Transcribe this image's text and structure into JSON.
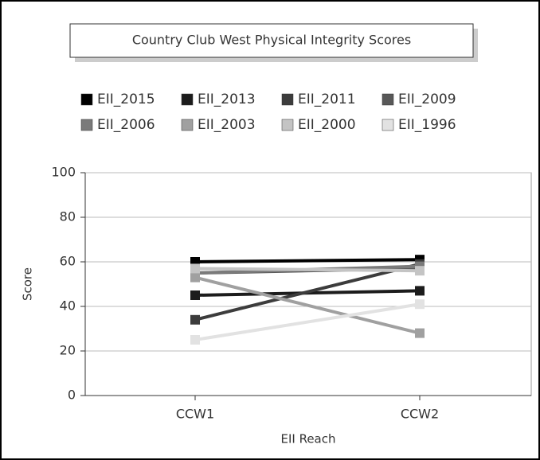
{
  "chart_data": {
    "type": "line",
    "title": "Country Club West Physical Integrity Scores",
    "x_label": "EII Reach",
    "y_label": "Score",
    "categories": [
      "CCW1",
      "CCW2"
    ],
    "ylim": [
      0,
      100
    ],
    "yticks": [
      0,
      20,
      40,
      60,
      80,
      100
    ],
    "grid": true,
    "series": [
      {
        "name": "EII_2015",
        "color": "#000000",
        "values": [
          60,
          61
        ]
      },
      {
        "name": "EII_2013",
        "color": "#1c1c1c",
        "values": [
          45,
          47
        ]
      },
      {
        "name": "EII_2011",
        "color": "#3c3c3c",
        "values": [
          34,
          59
        ]
      },
      {
        "name": "EII_2009",
        "color": "#585858",
        "values": [
          55,
          57
        ]
      },
      {
        "name": "EII_2006",
        "color": "#7a7a7a",
        "values": [
          55,
          58
        ]
      },
      {
        "name": "EII_2003",
        "color": "#a0a0a0",
        "values": [
          53,
          28
        ]
      },
      {
        "name": "EII_2000",
        "color": "#c4c4c4",
        "values": [
          57,
          56
        ]
      },
      {
        "name": "EII_1996",
        "color": "#e2e2e2",
        "values": [
          25,
          41
        ]
      }
    ]
  }
}
